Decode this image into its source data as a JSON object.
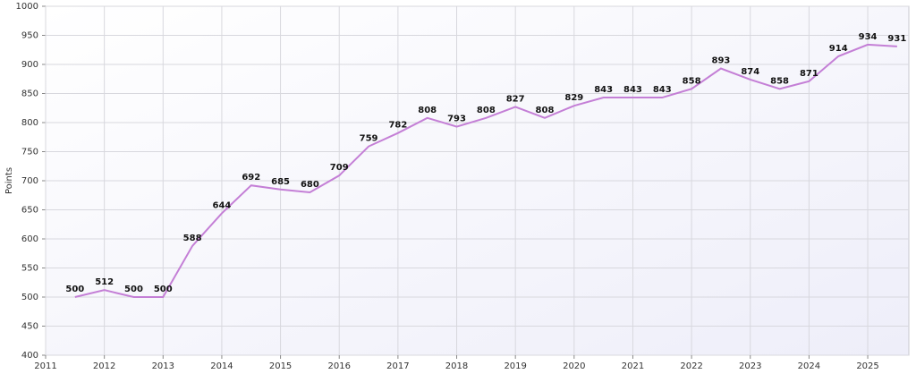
{
  "chart_data": {
    "type": "line",
    "y_label": "Points",
    "x": [
      2011.5,
      2012,
      2012.5,
      2013,
      2013.5,
      2014,
      2014.5,
      2015,
      2015.5,
      2016,
      2016.5,
      2017,
      2017.5,
      2018,
      2018.5,
      2019,
      2019.5,
      2020,
      2020.5,
      2021,
      2021.5,
      2022,
      2022.5,
      2023,
      2023.5,
      2024,
      2024.5,
      2025,
      2025.5
    ],
    "values": [
      500,
      512,
      500,
      500,
      588,
      644,
      692,
      685,
      680,
      709,
      759,
      782,
      808,
      793,
      808,
      827,
      808,
      829,
      843,
      843,
      843,
      858,
      893,
      874,
      858,
      871,
      914,
      934,
      931
    ],
    "color": "#c47fd6",
    "xlim": [
      2011,
      2025.7
    ],
    "xticks": [
      2011,
      2012,
      2013,
      2014,
      2015,
      2016,
      2017,
      2018,
      2019,
      2020,
      2021,
      2022,
      2023,
      2024,
      2025
    ],
    "ylim": [
      400,
      1000
    ],
    "yticks": [
      400,
      450,
      500,
      550,
      600,
      650,
      700,
      750,
      800,
      850,
      900,
      950,
      1000
    ],
    "grid": true
  }
}
